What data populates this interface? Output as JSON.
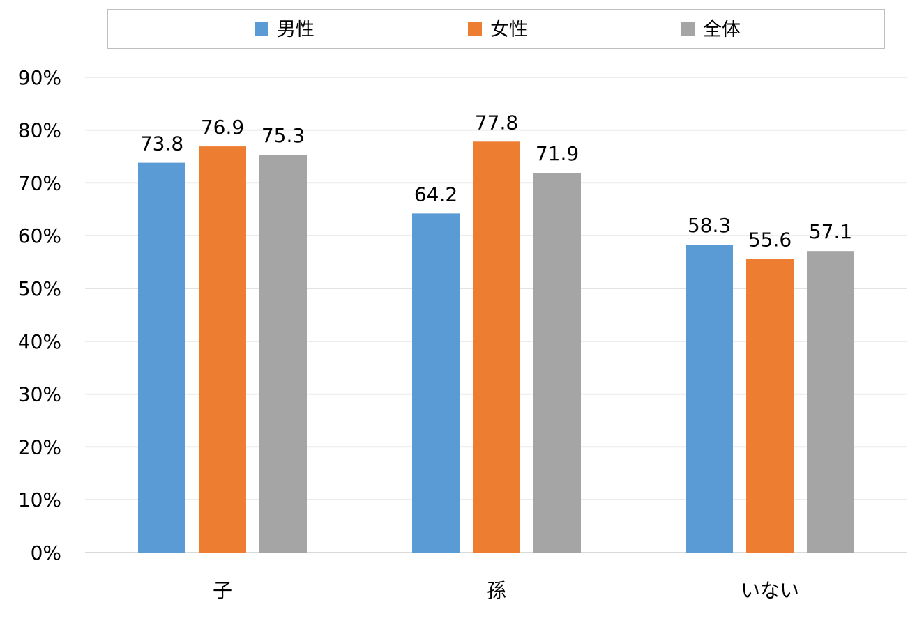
{
  "chart_data": {
    "type": "bar",
    "categories": [
      "子",
      "孫",
      "いない"
    ],
    "series": [
      {
        "name": "男性",
        "values": [
          73.8,
          64.2,
          58.3
        ],
        "color": "#5B9BD5"
      },
      {
        "name": "女性",
        "values": [
          76.9,
          77.8,
          55.6
        ],
        "color": "#ED7D31"
      },
      {
        "name": "全体",
        "values": [
          75.3,
          71.9,
          57.1
        ],
        "color": "#A5A5A5"
      }
    ],
    "data_labels": [
      [
        "73.8",
        "64.2",
        "58.3"
      ],
      [
        "76.9",
        "77.8",
        "55.6"
      ],
      [
        "75.3",
        "71.9",
        "57.1"
      ]
    ],
    "y_ticks": [
      "0%",
      "10%",
      "20%",
      "30%",
      "40%",
      "50%",
      "60%",
      "70%",
      "80%",
      "90%"
    ],
    "ylim": [
      0,
      90
    ],
    "y_step": 10,
    "grid": true,
    "legend_position": "top",
    "colors": {
      "gridline": "#D9D9D9",
      "axis_line": "#D9D9D9",
      "text": "#000000",
      "legend_border": "#BFBFBF"
    }
  }
}
